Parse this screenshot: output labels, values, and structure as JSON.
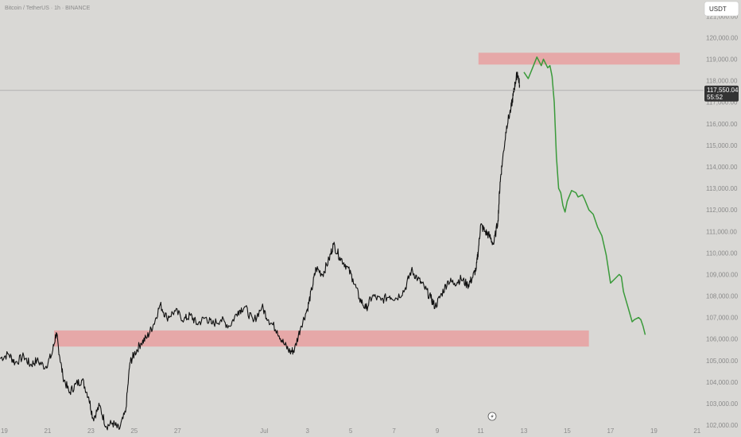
{
  "header": {
    "title": "Bitcoin / TetherUS · 1h · BINANCE",
    "currency_button": "USDT"
  },
  "price_tag": {
    "price": "117,550.04",
    "countdown": "55:52"
  },
  "colors": {
    "background": "#d9d8d5",
    "zone": "#e8a0a0",
    "candles": "#111111",
    "projection": "#3a9a3a",
    "price_tag": "#333333"
  },
  "icons": {
    "bottom_marker": "lightning-bolt-icon"
  },
  "chart_data": {
    "type": "line",
    "y_axis_ticks": [
      102000,
      103000,
      104000,
      105000,
      106000,
      107000,
      108000,
      109000,
      110000,
      111000,
      112000,
      113000,
      114000,
      115000,
      116000,
      117000,
      118000,
      119000,
      120000,
      121000
    ],
    "y_tick_labels": [
      "102,000.00",
      "103,000.00",
      "104,000.00",
      "105,000.00",
      "106,000.00",
      "107,000.00",
      "108,000.00",
      "109,000.00",
      "110,000.00",
      "111,000.00",
      "112,000.00",
      "113,000.00",
      "114,000.00",
      "115,000.00",
      "116,000.00",
      "117,000.00",
      "118,000.00",
      "119,000.00",
      "120,000.00",
      "121,000.00"
    ],
    "x_tick_labels": [
      "19",
      "21",
      "23",
      "25",
      "27",
      "Jul",
      "3",
      "5",
      "7",
      "9",
      "11",
      "13",
      "15",
      "17",
      "19",
      "21"
    ],
    "x_tick_index": [
      0,
      2,
      4,
      6,
      8,
      12,
      14,
      16,
      18,
      20,
      22,
      24,
      26,
      28,
      30,
      32
    ],
    "ylim": [
      101450,
      121750
    ],
    "xlim_index": [
      -0.2,
      32.3
    ],
    "current_price": 117550.04,
    "zones": [
      {
        "name": "resistance",
        "x_start": 21.9,
        "x_end": 31.2,
        "y_low": 118750,
        "y_high": 119300
      },
      {
        "name": "support",
        "x_start": 2.3,
        "x_end": 27.0,
        "y_low": 105650,
        "y_high": 106400
      }
    ],
    "series": [
      {
        "style": "price",
        "points": [
          [
            -0.2,
            105100
          ],
          [
            0.2,
            105300
          ],
          [
            0.5,
            104900
          ],
          [
            0.9,
            105200
          ],
          [
            1.2,
            104800
          ],
          [
            1.5,
            105000
          ],
          [
            1.9,
            104700
          ],
          [
            2.2,
            105300
          ],
          [
            2.4,
            106300
          ],
          [
            2.5,
            105600
          ],
          [
            2.7,
            104300
          ],
          [
            3.0,
            103500
          ],
          [
            3.3,
            103900
          ],
          [
            3.6,
            104100
          ],
          [
            3.9,
            103300
          ],
          [
            4.1,
            102300
          ],
          [
            4.4,
            102900
          ],
          [
            4.7,
            101950
          ],
          [
            5.0,
            102100
          ],
          [
            5.3,
            101800
          ],
          [
            5.6,
            102600
          ],
          [
            5.8,
            104900
          ],
          [
            6.0,
            105300
          ],
          [
            6.3,
            105800
          ],
          [
            6.6,
            106100
          ],
          [
            6.9,
            106700
          ],
          [
            7.2,
            107600
          ],
          [
            7.5,
            107000
          ],
          [
            7.9,
            107300
          ],
          [
            8.3,
            106900
          ],
          [
            8.6,
            107100
          ],
          [
            8.9,
            106700
          ],
          [
            9.3,
            107000
          ],
          [
            9.6,
            106700
          ],
          [
            10.0,
            106900
          ],
          [
            10.4,
            106600
          ],
          [
            10.8,
            107300
          ],
          [
            11.1,
            107500
          ],
          [
            11.5,
            106800
          ],
          [
            11.9,
            107500
          ],
          [
            12.2,
            106900
          ],
          [
            12.6,
            106400
          ],
          [
            12.9,
            105800
          ],
          [
            13.2,
            105400
          ],
          [
            13.4,
            105500
          ],
          [
            13.7,
            106600
          ],
          [
            14.0,
            107400
          ],
          [
            14.2,
            108300
          ],
          [
            14.4,
            109300
          ],
          [
            14.7,
            109000
          ],
          [
            15.0,
            109700
          ],
          [
            15.2,
            110400
          ],
          [
            15.5,
            109800
          ],
          [
            15.8,
            109400
          ],
          [
            16.1,
            108800
          ],
          [
            16.4,
            107900
          ],
          [
            16.7,
            107400
          ],
          [
            17.0,
            108000
          ],
          [
            17.4,
            107800
          ],
          [
            17.8,
            108000
          ],
          [
            18.1,
            107900
          ],
          [
            18.5,
            108300
          ],
          [
            18.8,
            109200
          ],
          [
            19.1,
            108800
          ],
          [
            19.4,
            108400
          ],
          [
            19.7,
            107900
          ],
          [
            19.9,
            107500
          ],
          [
            20.2,
            108100
          ],
          [
            20.5,
            108700
          ],
          [
            20.8,
            108600
          ],
          [
            21.1,
            108800
          ],
          [
            21.4,
            108500
          ],
          [
            21.6,
            108800
          ],
          [
            21.8,
            109300
          ],
          [
            21.9,
            110200
          ],
          [
            22.0,
            111300
          ],
          [
            22.2,
            111000
          ],
          [
            22.4,
            110800
          ],
          [
            22.6,
            110400
          ],
          [
            22.8,
            111500
          ],
          [
            22.9,
            113300
          ],
          [
            23.0,
            114200
          ],
          [
            23.2,
            115900
          ],
          [
            23.4,
            116700
          ],
          [
            23.5,
            117300
          ],
          [
            23.6,
            117900
          ],
          [
            23.7,
            118400
          ],
          [
            23.8,
            117800
          ]
        ]
      },
      {
        "style": "projection",
        "points": [
          [
            24.0,
            118400
          ],
          [
            24.2,
            118100
          ],
          [
            24.4,
            118600
          ],
          [
            24.6,
            119100
          ],
          [
            24.8,
            118700
          ],
          [
            24.9,
            119000
          ],
          [
            25.1,
            118600
          ],
          [
            25.2,
            118700
          ],
          [
            25.3,
            118200
          ],
          [
            25.4,
            117000
          ],
          [
            25.5,
            114500
          ],
          [
            25.6,
            113000
          ],
          [
            25.7,
            112800
          ],
          [
            25.8,
            112200
          ],
          [
            25.9,
            111900
          ],
          [
            26.0,
            112400
          ],
          [
            26.2,
            112900
          ],
          [
            26.4,
            112800
          ],
          [
            26.5,
            112600
          ],
          [
            26.7,
            112700
          ],
          [
            26.8,
            112500
          ],
          [
            27.0,
            112000
          ],
          [
            27.2,
            111800
          ],
          [
            27.4,
            111200
          ],
          [
            27.6,
            110800
          ],
          [
            27.8,
            109900
          ],
          [
            28.0,
            108600
          ],
          [
            28.2,
            108800
          ],
          [
            28.4,
            109000
          ],
          [
            28.5,
            108900
          ],
          [
            28.6,
            108200
          ],
          [
            28.8,
            107500
          ],
          [
            29.0,
            106800
          ],
          [
            29.1,
            106900
          ],
          [
            29.3,
            107000
          ],
          [
            29.4,
            106900
          ],
          [
            29.5,
            106600
          ],
          [
            29.6,
            106200
          ]
        ]
      }
    ]
  }
}
